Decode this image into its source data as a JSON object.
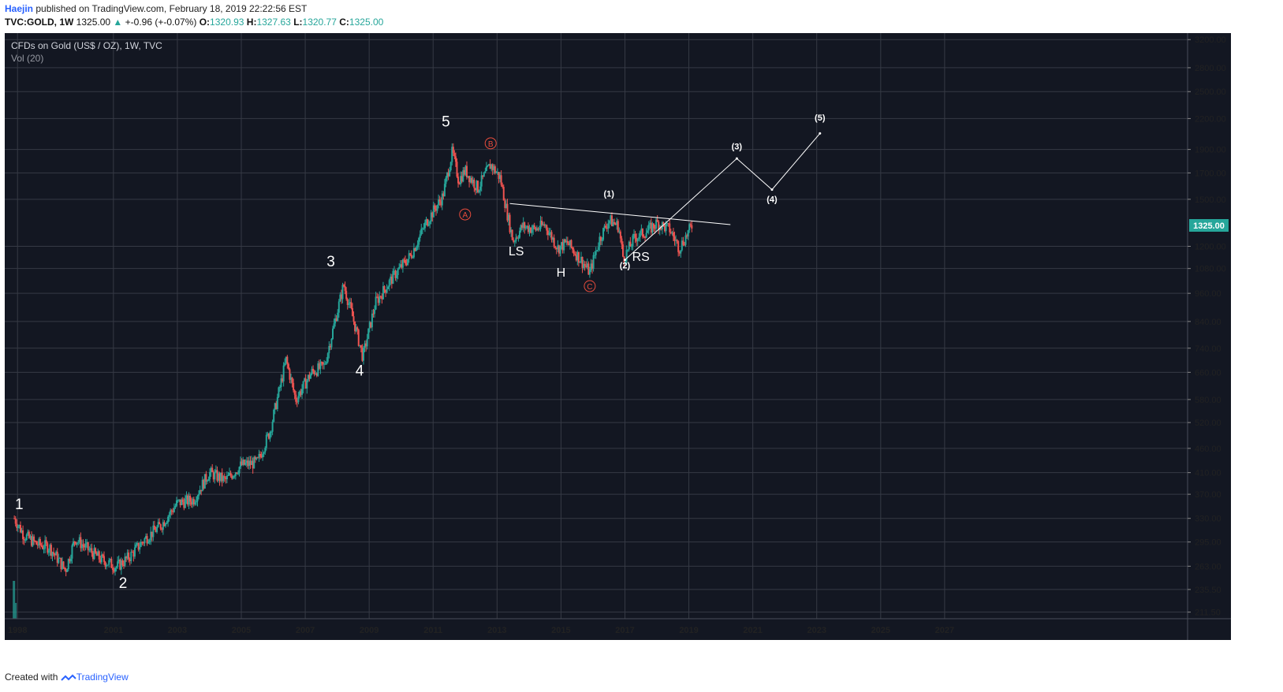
{
  "header": {
    "author": "Haejin",
    "published": " published on TradingView.com, February 18, 2019 22:22:56 EST",
    "symbol": "TVC:GOLD, 1W",
    "last": "1325.00",
    "change": "+-0.96 (+-0.07%)",
    "o_label": "O:",
    "o": "1320.93",
    "h_label": "H:",
    "h": "1327.63",
    "l_label": "L:",
    "l": "1320.77",
    "c_label": "C:",
    "c": "1325.00"
  },
  "legend": {
    "title": "CFDs on Gold (US$ / OZ), 1W, TVC",
    "indicator": "Vol (20)"
  },
  "footer": {
    "created": "Created with",
    "brand": "TradingView"
  },
  "colors": {
    "bg": "#131722",
    "grid": "#363a45",
    "up": "#26a69a",
    "down": "#ef5350",
    "annot": "#ffffff",
    "abc": "#e74c3c",
    "price_tag": "#26a69a"
  },
  "chart_data": {
    "type": "candlestick",
    "title": "CFDs on Gold (US$ / OZ), 1W, TVC",
    "scale": "log",
    "ylim": [
      205,
      3300
    ],
    "xlim": [
      1997.6,
      2034.6
    ],
    "y_ticks": [
      211.5,
      235.5,
      263,
      295,
      330,
      370,
      410,
      460,
      520,
      580,
      660,
      740,
      840,
      960,
      1080,
      1200,
      1500,
      1700,
      1900,
      2200,
      2500,
      2800,
      3200
    ],
    "y_tick_labels": [
      "211.50",
      "235.50",
      "263.00",
      "295.00",
      "330.00",
      "370.00",
      "410.00",
      "460.00",
      "520.00",
      "580.00",
      "660.00",
      "740.00",
      "840.00",
      "960.00",
      "1080.00",
      "1200.00",
      "1500.00",
      "1700.00",
      "1900.00",
      "2200.00",
      "2500.00",
      "2800.00",
      "3200.00"
    ],
    "x_ticks": [
      1998,
      2001,
      2003,
      2005,
      2007,
      2009,
      2011,
      2013,
      2015,
      2017,
      2019,
      2021,
      2023,
      2025,
      2027
    ],
    "x_tick_labels": [
      "1998",
      "2001",
      "2003",
      "2005",
      "2007",
      "2009",
      "2011",
      "2013",
      "2015",
      "2017",
      "2019",
      "2021",
      "2023",
      "2025",
      "2027"
    ],
    "last_price": 1325.0,
    "last_price_label": "1325.00",
    "price_path": [
      [
        1997.9,
        330
      ],
      [
        1998.2,
        305
      ],
      [
        1998.6,
        292
      ],
      [
        1999.0,
        288
      ],
      [
        1999.5,
        258
      ],
      [
        1999.8,
        300
      ],
      [
        2000.2,
        285
      ],
      [
        2000.6,
        272
      ],
      [
        2001.1,
        262
      ],
      [
        2001.5,
        275
      ],
      [
        2002.0,
        300
      ],
      [
        2002.5,
        320
      ],
      [
        2003.0,
        355
      ],
      [
        2003.5,
        360
      ],
      [
        2004.0,
        410
      ],
      [
        2004.5,
        395
      ],
      [
        2005.0,
        425
      ],
      [
        2005.5,
        430
      ],
      [
        2005.9,
        500
      ],
      [
        2006.4,
        700
      ],
      [
        2006.7,
        580
      ],
      [
        2007.2,
        660
      ],
      [
        2007.6,
        680
      ],
      [
        2008.0,
        880
      ],
      [
        2008.2,
        1000
      ],
      [
        2008.5,
        850
      ],
      [
        2008.8,
        710
      ],
      [
        2009.2,
        920
      ],
      [
        2009.8,
        1050
      ],
      [
        2010.3,
        1150
      ],
      [
        2010.8,
        1350
      ],
      [
        2011.3,
        1520
      ],
      [
        2011.6,
        1880
      ],
      [
        2011.8,
        1640
      ],
      [
        2012.0,
        1720
      ],
      [
        2012.4,
        1580
      ],
      [
        2012.8,
        1770
      ],
      [
        2013.1,
        1660
      ],
      [
        2013.3,
        1420
      ],
      [
        2013.5,
        1230
      ],
      [
        2013.8,
        1320
      ],
      [
        2014.2,
        1300
      ],
      [
        2014.5,
        1330
      ],
      [
        2014.9,
        1190
      ],
      [
        2015.2,
        1220
      ],
      [
        2015.6,
        1130
      ],
      [
        2015.9,
        1060
      ],
      [
        2016.2,
        1240
      ],
      [
        2016.5,
        1360
      ],
      [
        2016.8,
        1320
      ],
      [
        2016.95,
        1130
      ],
      [
        2017.3,
        1250
      ],
      [
        2017.7,
        1290
      ],
      [
        2018.0,
        1340
      ],
      [
        2018.4,
        1300
      ],
      [
        2018.7,
        1190
      ],
      [
        2019.1,
        1325
      ]
    ],
    "volume": [
      {
        "x": 1997.9,
        "note": "early volume bars"
      }
    ],
    "neckline": [
      [
        2013.4,
        1470
      ],
      [
        2020.3,
        1330
      ]
    ],
    "projection": [
      [
        2017.0,
        1125
      ],
      [
        2020.5,
        1820
      ],
      [
        2021.6,
        1570
      ],
      [
        2023.1,
        2050
      ]
    ],
    "annotations": [
      {
        "text": "1",
        "x": 1998.05,
        "y": 345,
        "style": "wave"
      },
      {
        "text": "2",
        "x": 2001.3,
        "y": 237,
        "style": "wave"
      },
      {
        "text": "3",
        "x": 2007.8,
        "y": 1090,
        "style": "wave"
      },
      {
        "text": "4",
        "x": 2008.7,
        "y": 650,
        "style": "wave"
      },
      {
        "text": "5",
        "x": 2011.4,
        "y": 2120,
        "style": "wave"
      },
      {
        "text": "A",
        "x": 2012.0,
        "y": 1370,
        "style": "circle"
      },
      {
        "text": "B",
        "x": 2012.8,
        "y": 1920,
        "style": "circle"
      },
      {
        "text": "C",
        "x": 2015.9,
        "y": 975,
        "style": "circle"
      },
      {
        "text": "LS",
        "x": 2013.6,
        "y": 1150,
        "style": "pattern"
      },
      {
        "text": "H",
        "x": 2015.0,
        "y": 1040,
        "style": "pattern"
      },
      {
        "text": "RS",
        "x": 2017.5,
        "y": 1120,
        "style": "pattern"
      },
      {
        "text": "(1)",
        "x": 2016.5,
        "y": 1520,
        "style": "small"
      },
      {
        "text": "(2)",
        "x": 2017.0,
        "y": 1080,
        "style": "small"
      },
      {
        "text": "(3)",
        "x": 2020.5,
        "y": 1900,
        "style": "small"
      },
      {
        "text": "(4)",
        "x": 2021.6,
        "y": 1480,
        "style": "small"
      },
      {
        "text": "(5)",
        "x": 2023.1,
        "y": 2180,
        "style": "small"
      }
    ]
  }
}
